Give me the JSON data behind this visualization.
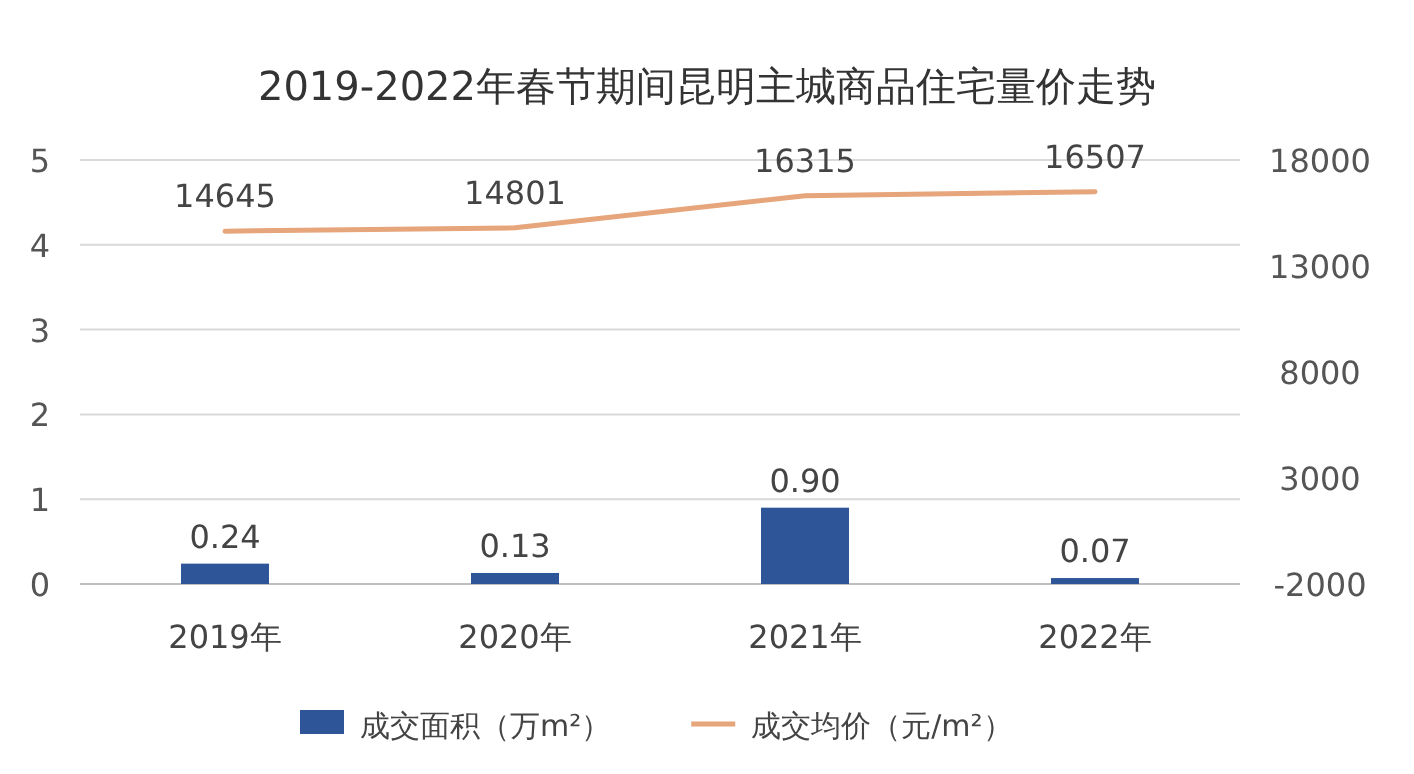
{
  "chart_data": {
    "type": "bar",
    "title": "2019-2022年春节期间昆明主城商品住宅量价走势",
    "categories": [
      "2019年",
      "2020年",
      "2021年",
      "2022年"
    ],
    "series": [
      {
        "name": "成交面积（万m²）",
        "color": "#2e5597",
        "values": [
          0.24,
          0.13,
          0.9,
          0.07
        ],
        "value_labels": [
          "0.24",
          "0.13",
          "0.90",
          "0.07"
        ]
      },
      {
        "name": "成交均价（元/m²）",
        "type": "line",
        "axis": "y2",
        "color": "#e6a57a",
        "values": [
          14645,
          14801,
          16315,
          16507
        ],
        "value_labels": [
          "14645",
          "14801",
          "16315",
          "16507"
        ]
      }
    ],
    "ylim": [
      0,
      5
    ],
    "yticks": [
      0,
      1,
      2,
      3,
      4,
      5
    ],
    "y2lim": [
      -2000,
      18000
    ],
    "y2ticks": [
      -2000,
      3000,
      8000,
      13000,
      18000
    ],
    "grid": "y",
    "legend": "bottom",
    "marker": "none"
  }
}
